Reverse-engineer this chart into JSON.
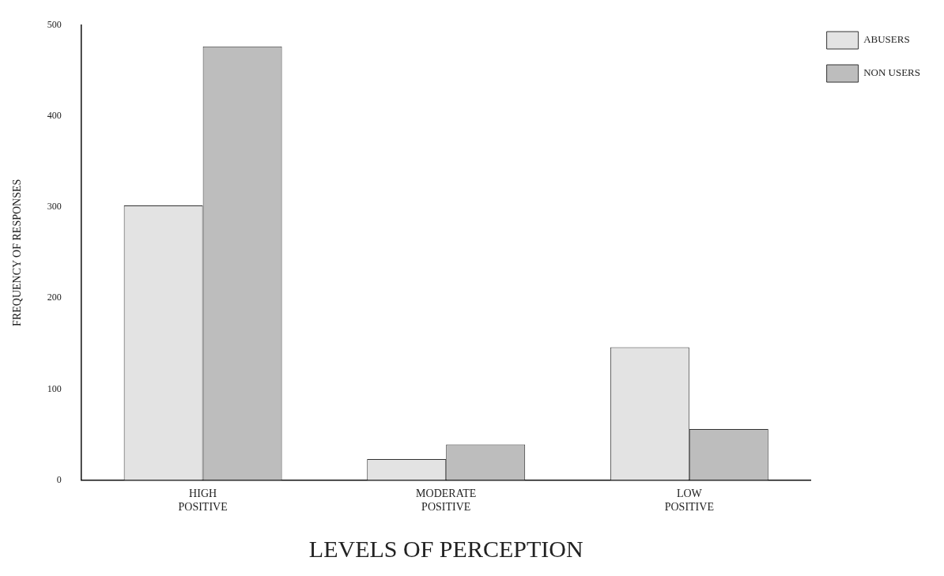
{
  "chart_data": {
    "type": "bar",
    "xlabel": "LEVELS OF PERCEPTION",
    "ylabel": "FREQUENCY OF RESPONSES",
    "categories": [
      "HIGH POSITIVE",
      "MODERATE POSITIVE",
      "LOW POSITIVE"
    ],
    "series": [
      {
        "name": "ABUSERS",
        "color": "#e3e3e3",
        "values": [
          302,
          23,
          146
        ]
      },
      {
        "name": "NON USERS",
        "color": "#bdbdbd",
        "values": [
          477,
          39,
          56
        ]
      }
    ],
    "ylim": [
      0,
      500
    ],
    "yticks": [
      0,
      100,
      200,
      300,
      400,
      500
    ],
    "grid": false,
    "legend": "top right"
  }
}
